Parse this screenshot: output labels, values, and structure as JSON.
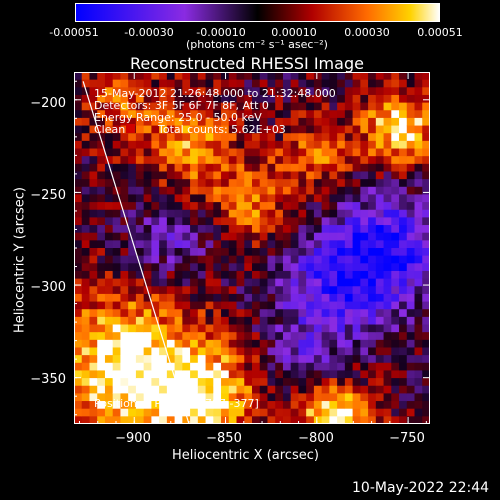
{
  "colorbar": {
    "tick_labels": [
      "-0.00051",
      "-0.00030",
      "-0.00010",
      "0.00010",
      "0.00030",
      "0.00051"
    ],
    "tick_values": [
      -0.00051,
      -0.0003,
      -0.0001,
      0.0001,
      0.0003,
      0.00051
    ],
    "unit_label": "(photons cm⁻² s⁻¹ asec⁻²)",
    "range": [
      -0.00051,
      0.00051
    ]
  },
  "chart_data": {
    "type": "heatmap",
    "title": "Reconstructed RHESSI Image",
    "xlabel": "Heliocentric X (arcsec)",
    "ylabel": "Heliocentric Y (arcsec)",
    "xlim": [
      -933,
      -738
    ],
    "ylim": [
      -375,
      -185
    ],
    "x_ticks": [
      -900,
      -850,
      -800,
      -750
    ],
    "y_ticks": [
      -200,
      -250,
      -300,
      -350
    ],
    "x_tick_labels": [
      "−900",
      "−850",
      "−800",
      "−750"
    ],
    "y_tick_labels": [
      "−200",
      "−250",
      "−300",
      "−350"
    ],
    "annotations": {
      "time_range": "15-May-2012 21:26:48.000 to 21:32:48.000",
      "detectors": "Detectors: 3F 5F 6F 7F 8F, Att 0",
      "energy": "Energy Range: 25.0 - 50.0 keV",
      "clean_label": "Clean",
      "total_counts": "Total counts: 5.62E+03",
      "peak": "Position of Peak = [-787,-377]"
    },
    "peak_position": [
      -787,
      -377
    ],
    "limb_line": [
      [
        -928,
        -190
      ],
      [
        -870,
        -375
      ]
    ]
  },
  "footer_timestamp": "10-May-2022 22:44"
}
